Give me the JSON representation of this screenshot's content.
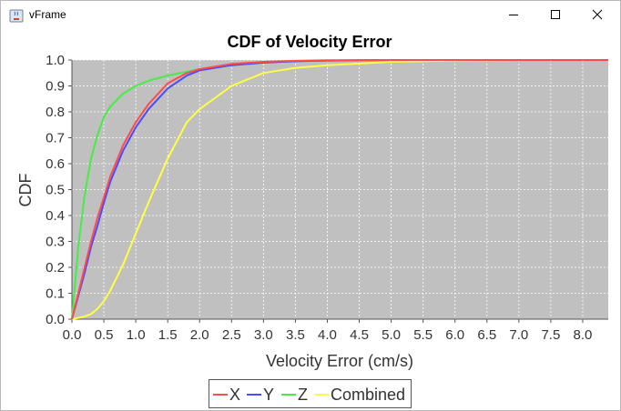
{
  "window": {
    "title": "vFrame",
    "icon": "java-cup-icon",
    "controls": [
      "minimize-icon",
      "maximize-icon",
      "close-icon"
    ]
  },
  "chart_data": {
    "type": "line",
    "title": "CDF of Velocity Error",
    "xlabel": "Velocity Error (cm/s)",
    "ylabel": "CDF",
    "xlim": [
      0,
      8.4
    ],
    "ylim": [
      0,
      1.0
    ],
    "x_ticks": [
      "0.0",
      "0.5",
      "1.0",
      "1.5",
      "2.0",
      "2.5",
      "3.0",
      "3.5",
      "4.0",
      "4.5",
      "5.0",
      "5.5",
      "6.0",
      "6.5",
      "7.0",
      "7.5",
      "8.0"
    ],
    "y_ticks": [
      "0.0",
      "0.1",
      "0.2",
      "0.3",
      "0.4",
      "0.5",
      "0.6",
      "0.7",
      "0.8",
      "0.9",
      "1.0"
    ],
    "grid": true,
    "legend": "bottom",
    "plot_background": "#c0c0c0",
    "x": [
      0,
      0.1,
      0.2,
      0.3,
      0.4,
      0.5,
      0.6,
      0.8,
      1.0,
      1.2,
      1.5,
      1.8,
      2.0,
      2.5,
      3.0,
      3.5,
      4.0,
      5.0,
      6.0,
      7.0,
      8.4
    ],
    "series": [
      {
        "name": "X",
        "color": "#ff4b4b",
        "values": [
          0,
          0.1,
          0.2,
          0.3,
          0.39,
          0.47,
          0.55,
          0.67,
          0.76,
          0.83,
          0.91,
          0.95,
          0.965,
          0.985,
          0.993,
          0.997,
          0.999,
          1.0,
          1.0,
          1.0,
          1.0
        ]
      },
      {
        "name": "Y",
        "color": "#4b4bff",
        "values": [
          0,
          0.09,
          0.18,
          0.28,
          0.36,
          0.45,
          0.53,
          0.65,
          0.74,
          0.81,
          0.89,
          0.94,
          0.96,
          0.98,
          0.99,
          0.995,
          0.998,
          1.0,
          1.0,
          1.0,
          1.0
        ]
      },
      {
        "name": "Z",
        "color": "#44ee44",
        "values": [
          0,
          0.28,
          0.48,
          0.62,
          0.71,
          0.78,
          0.82,
          0.87,
          0.9,
          0.92,
          0.94,
          0.955,
          0.965,
          0.98,
          0.99,
          0.995,
          0.998,
          1.0,
          1.0,
          1.0,
          1.0
        ]
      },
      {
        "name": "Combined",
        "color": "#ffff44",
        "values": [
          0,
          0.005,
          0.01,
          0.02,
          0.04,
          0.07,
          0.11,
          0.21,
          0.33,
          0.45,
          0.62,
          0.76,
          0.81,
          0.9,
          0.95,
          0.97,
          0.98,
          0.993,
          0.998,
          1.0,
          1.0
        ]
      }
    ]
  }
}
